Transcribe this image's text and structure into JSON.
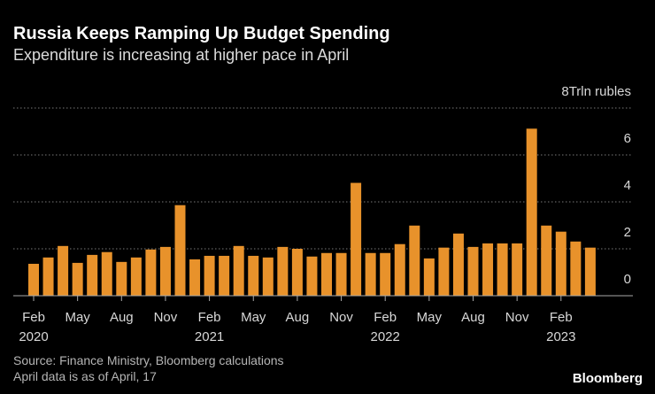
{
  "chart_data": {
    "type": "bar",
    "title": "Russia Keeps Ramping Up Budget Spending",
    "subtitle": "Expenditure is increasing at higher pace in April",
    "source": "Source: Finance Ministry, Bloomberg calculations",
    "note": "April data is as of April, 17",
    "brand": "Bloomberg",
    "categories": [
      {
        "month": "Feb",
        "year": "2020"
      },
      null,
      null,
      {
        "month": "May"
      },
      null,
      null,
      {
        "month": "Aug"
      },
      null,
      null,
      {
        "month": "Nov"
      },
      null,
      null,
      {
        "month": "Feb",
        "year": "2021"
      },
      null,
      null,
      {
        "month": "May"
      },
      null,
      null,
      {
        "month": "Aug"
      },
      null,
      null,
      {
        "month": "Nov"
      },
      null,
      null,
      {
        "month": "Feb",
        "year": "2022"
      },
      null,
      null,
      {
        "month": "May"
      },
      null,
      null,
      {
        "month": "Aug"
      },
      null,
      null,
      {
        "month": "Nov"
      },
      null,
      null,
      {
        "month": "Feb",
        "year": "2023"
      },
      null,
      null
    ],
    "values": [
      1.36,
      1.63,
      2.12,
      1.4,
      1.74,
      1.86,
      1.44,
      1.63,
      1.97,
      2.08,
      3.86,
      1.55,
      1.7,
      1.7,
      2.12,
      1.7,
      1.63,
      2.08,
      2.0,
      1.67,
      1.82,
      1.82,
      4.81,
      1.82,
      1.82,
      2.2,
      2.99,
      1.59,
      2.05,
      2.65,
      2.08,
      2.23,
      2.23,
      2.23,
      7.12,
      2.99,
      2.73,
      2.31,
      2.05
    ],
    "color": "#e8922b",
    "ylim": [
      0,
      8
    ],
    "yticks": [
      0,
      2,
      4,
      6,
      {
        "value": 8,
        "label": "8Trln rubles"
      }
    ],
    "grid": true
  }
}
